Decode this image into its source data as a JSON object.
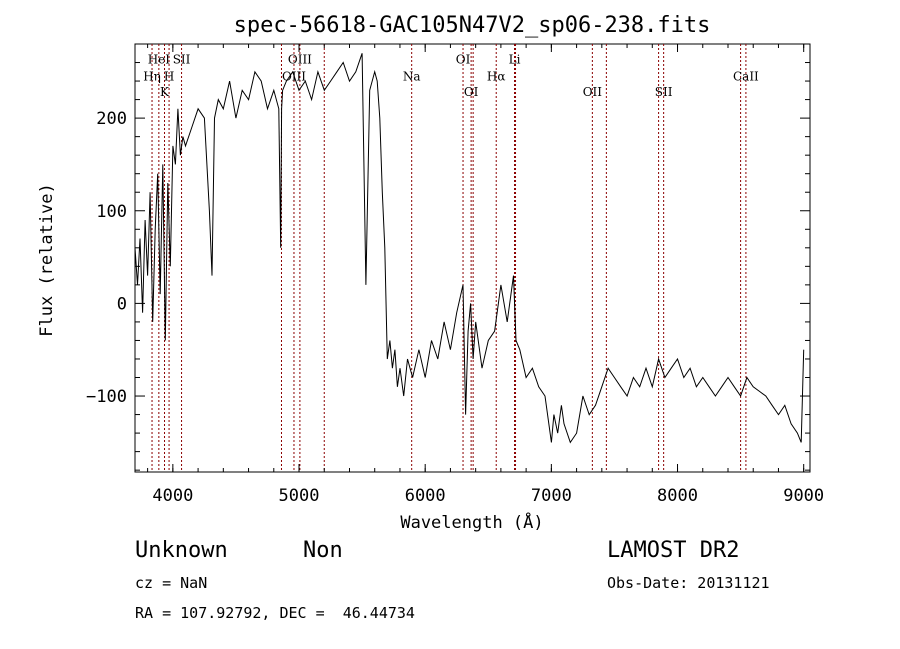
{
  "chart_data": {
    "type": "line",
    "title": "spec-56618-GAC105N47V2_sp06-238.fits",
    "xlabel": "Wavelength (Å)",
    "ylabel": "Flux (relative)",
    "xlim": [
      3700,
      9050
    ],
    "ylim": [
      -182,
      280
    ],
    "xticks": [
      {
        "value": 4000,
        "label": "4000"
      },
      {
        "value": 5000,
        "label": "5000"
      },
      {
        "value": 6000,
        "label": "6000"
      },
      {
        "value": 7000,
        "label": "7000"
      },
      {
        "value": 8000,
        "label": "8000"
      },
      {
        "value": 9000,
        "label": "9000"
      }
    ],
    "yticks": [
      {
        "value": -100,
        "label": "−100"
      },
      {
        "value": 0,
        "label": "0"
      },
      {
        "value": 100,
        "label": "100"
      },
      {
        "value": 200,
        "label": "200"
      }
    ],
    "grid": false,
    "line_color": "#000000",
    "marker_line_color": "#8b0000",
    "spectral_lines": [
      {
        "label": "HeI",
        "wavelength": 3889,
        "label_y": 263
      },
      {
        "label": "Hη",
        "wavelength": 3835,
        "label_y": 245
      },
      {
        "label": "H",
        "wavelength": 3970,
        "label_y": 245
      },
      {
        "label": "K",
        "wavelength": 3934,
        "label_y": 228
      },
      {
        "label": "SII",
        "wavelength": 4069,
        "label_y": 263
      },
      {
        "label": "OIII",
        "wavelength": 5007,
        "label_y": 263
      },
      {
        "label": "OIII",
        "wavelength": 4960,
        "label_y": 245
      },
      {
        "label": "Na",
        "wavelength": 5893,
        "label_y": 245
      },
      {
        "label": "OI",
        "wavelength": 6300,
        "label_y": 263
      },
      {
        "label": "Hα",
        "wavelength": 6563,
        "label_y": 245
      },
      {
        "label": "Li",
        "wavelength": 6708,
        "label_y": 263
      },
      {
        "label": "OI",
        "wavelength": 6364,
        "label_y": 228
      },
      {
        "label": "OII",
        "wavelength": 7325,
        "label_y": 228
      },
      {
        "label": "SII",
        "wavelength": 7890,
        "label_y": 228
      },
      {
        "label": "CaII",
        "wavelength": 8542,
        "label_y": 245
      }
    ],
    "extra_marker_wavelengths": [
      4861,
      4861,
      5200,
      6380,
      6716,
      7436,
      7850,
      8500
    ],
    "series": [
      {
        "x": [
          3700,
          3720,
          3740,
          3760,
          3780,
          3800,
          3820,
          3840,
          3860,
          3880,
          3900,
          3920,
          3940,
          3960,
          3980,
          4000,
          4020,
          4040,
          4060,
          4080,
          4100,
          4150,
          4200,
          4250,
          4290,
          4310,
          4330,
          4360,
          4400,
          4450,
          4500,
          4550,
          4600,
          4650,
          4700,
          4750,
          4800,
          4840,
          4855,
          4862,
          4870,
          4900,
          4950,
          5000,
          5050,
          5100,
          5150,
          5200,
          5250,
          5300,
          5350,
          5400,
          5450,
          5500,
          5530,
          5560,
          5600,
          5620,
          5640,
          5660,
          5680,
          5700,
          5720,
          5740,
          5760,
          5780,
          5800,
          5830,
          5860,
          5900,
          5950,
          6000,
          6050,
          6100,
          6150,
          6200,
          6250,
          6300,
          6320,
          6340,
          6360,
          6380,
          6400,
          6450,
          6500,
          6550,
          6600,
          6650,
          6700,
          6720,
          6750,
          6800,
          6850,
          6900,
          6950,
          7000,
          7020,
          7050,
          7080,
          7100,
          7150,
          7200,
          7250,
          7300,
          7350,
          7400,
          7450,
          7500,
          7550,
          7600,
          7650,
          7700,
          7750,
          7800,
          7850,
          7900,
          7950,
          8000,
          8050,
          8100,
          8150,
          8200,
          8250,
          8300,
          8350,
          8400,
          8450,
          8500,
          8550,
          8600,
          8650,
          8700,
          8750,
          8800,
          8850,
          8900,
          8950,
          8980,
          9000
        ],
        "y": [
          60,
          20,
          70,
          -10,
          90,
          30,
          120,
          -20,
          80,
          140,
          10,
          150,
          -40,
          130,
          40,
          170,
          150,
          210,
          160,
          180,
          170,
          190,
          210,
          200,
          100,
          30,
          200,
          220,
          210,
          240,
          200,
          230,
          220,
          250,
          240,
          210,
          230,
          210,
          60,
          210,
          230,
          240,
          250,
          230,
          240,
          220,
          250,
          230,
          240,
          250,
          260,
          240,
          250,
          270,
          20,
          230,
          250,
          240,
          200,
          120,
          60,
          -60,
          -40,
          -70,
          -50,
          -90,
          -70,
          -100,
          -60,
          -80,
          -50,
          -80,
          -40,
          -60,
          -20,
          -50,
          -10,
          20,
          -120,
          -30,
          0,
          -60,
          -20,
          -70,
          -40,
          -30,
          20,
          -20,
          30,
          -40,
          -50,
          -80,
          -70,
          -90,
          -100,
          -150,
          -120,
          -140,
          -110,
          -130,
          -150,
          -140,
          -100,
          -120,
          -110,
          -90,
          -70,
          -80,
          -90,
          -100,
          -80,
          -90,
          -70,
          -90,
          -60,
          -80,
          -70,
          -60,
          -80,
          -70,
          -90,
          -80,
          -90,
          -100,
          -90,
          -80,
          -90,
          -100,
          -80,
          -90,
          -95,
          -100,
          -110,
          -120,
          -110,
          -130,
          -140,
          -150,
          -50
        ]
      }
    ]
  },
  "info": {
    "object_class": "Unknown",
    "object_subclass": "Non",
    "cz": "cz = NaN",
    "coords": "RA = 107.92792, DEC =  46.44734",
    "survey": "LAMOST DR2",
    "obs_date": "Obs-Date: 20131121"
  }
}
